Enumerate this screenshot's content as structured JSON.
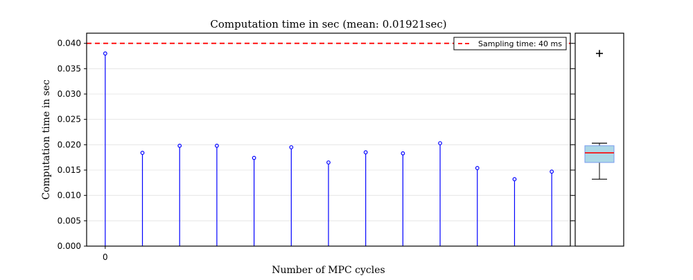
{
  "chart_data": {
    "type": "stem",
    "title": "Computation time in sec (mean: 0.01921sec)",
    "xlabel": "Number of MPC cycles",
    "ylabel": "Computation time in sec",
    "x_tick_labels": [
      "0"
    ],
    "ylim": [
      0.0,
      0.042
    ],
    "y_ticks": [
      "0.000",
      "0.005",
      "0.010",
      "0.015",
      "0.020",
      "0.025",
      "0.030",
      "0.035",
      "0.040"
    ],
    "grid": "horizontal",
    "x": [
      0,
      1,
      2,
      3,
      4,
      5,
      6,
      7,
      8,
      9,
      10,
      11,
      12
    ],
    "values": [
      0.038,
      0.0184,
      0.0198,
      0.0198,
      0.0174,
      0.0195,
      0.0165,
      0.0185,
      0.0183,
      0.0203,
      0.0154,
      0.0132,
      0.0147
    ],
    "xlim": [
      -0.5,
      12.5
    ],
    "reference_line": {
      "value": 0.04,
      "label": "Sampling time: 40 ms",
      "color": "#ff0000",
      "style": "dashed"
    },
    "legend": {
      "position": "top-right"
    },
    "boxplot": {
      "min": 0.0132,
      "q1": 0.0165,
      "median": 0.0184,
      "q3": 0.0198,
      "whisker_high": 0.0203,
      "outliers": [
        0.038
      ],
      "box_color": "#add8e6",
      "median_color": "#ff0000"
    },
    "colors": {
      "stem": "#0000ff",
      "marker": "#0000ff"
    }
  }
}
